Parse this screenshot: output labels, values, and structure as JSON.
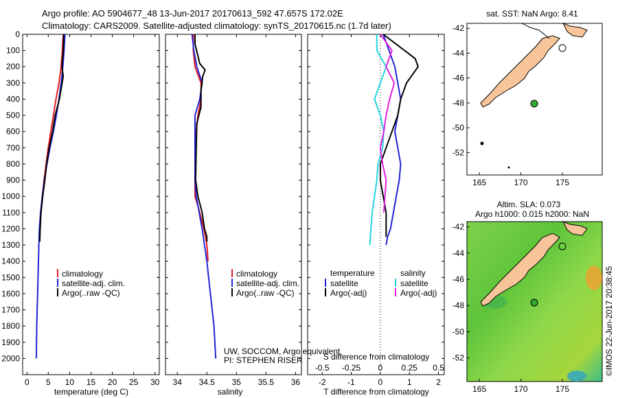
{
  "header": {
    "line1": "Argo profile: AO 5904677_48 13-Jun-2017 20170613_592 47.657S 172.02E",
    "line2": "Climatology: CARS2009. Satellite-adjusted climatology: synTS_20170615.nc (1.7d later)"
  },
  "credit": {
    "line1": "UW, SOCCOM, Argo equivalent",
    "line2": "PI: STEPHEN RISER"
  },
  "vertical_stamp": "©IMOS 22-Jun-2017 20:38:45",
  "colors": {
    "climatology": "#e41a1c",
    "satellite": "#1f22d6",
    "argo": "#000000",
    "satellite_salinity": "#22d3e0",
    "argo_salinity": "#e020e0",
    "land": "#f8c59a",
    "sla_green": "#66cc33",
    "argo_marker": "#33aa33"
  },
  "chart_data": [
    {
      "type": "line",
      "id": "temperature-panel",
      "xlabel": "temperature (deg C)",
      "ylabel": "",
      "xlim": [
        -1,
        31
      ],
      "ylim": [
        2100,
        0
      ],
      "xticks": [
        "0",
        "5",
        "10",
        "15",
        "20",
        "25",
        "30"
      ],
      "yticks": [
        "0",
        "100",
        "200",
        "300",
        "400",
        "500",
        "600",
        "700",
        "800",
        "900",
        "1000",
        "1100",
        "1200",
        "1300",
        "1400",
        "1500",
        "1600",
        "1700",
        "1800",
        "1900",
        "2000"
      ],
      "legend": [
        "climatology",
        "satellite-adj. clim.",
        "Argo(..raw -QC)"
      ],
      "series": [
        {
          "name": "climatology",
          "x": [
            8.5,
            8.3,
            8.0,
            7.5,
            6.8,
            6.2,
            5.6,
            5.0,
            4.5,
            4.0,
            3.6,
            3.2,
            3.0
          ],
          "y": [
            0,
            100,
            200,
            300,
            400,
            500,
            600,
            700,
            800,
            900,
            1000,
            1100,
            1200
          ]
        },
        {
          "name": "satellite-adj. clim.",
          "x": [
            8.9,
            8.7,
            8.4,
            8.0,
            7.5,
            6.9,
            6.2,
            5.4,
            4.7,
            4.1,
            3.6,
            3.2,
            2.9,
            2.8,
            2.7,
            2.6,
            2.5,
            2.4,
            2.3,
            2.25,
            2.2
          ],
          "y": [
            0,
            100,
            200,
            300,
            400,
            500,
            600,
            700,
            800,
            900,
            1000,
            1100,
            1200,
            1300,
            1400,
            1500,
            1600,
            1700,
            1800,
            1900,
            2000
          ]
        },
        {
          "name": "Argo(..raw -QC)",
          "x": [
            8.6,
            8.5,
            8.2,
            8.5,
            7.6,
            6.6,
            6.0,
            5.2,
            4.6,
            4.2,
            3.7,
            3.3,
            3.1,
            3.0
          ],
          "y": [
            0,
            100,
            200,
            260,
            400,
            500,
            600,
            700,
            800,
            900,
            1000,
            1100,
            1200,
            1280
          ]
        }
      ]
    },
    {
      "type": "line",
      "id": "salinity-panel",
      "xlabel": "salinity",
      "xlim": [
        33.8,
        36.1
      ],
      "ylim": [
        2100,
        0
      ],
      "xticks": [
        "34",
        "34.5",
        "35",
        "35.5",
        "36"
      ],
      "legend": [
        "climatology",
        "satellite-adj. clim.",
        "Argo(..raw -QC)"
      ],
      "series": [
        {
          "name": "climatology",
          "x": [
            34.27,
            34.27,
            34.3,
            34.4,
            34.4,
            34.35,
            34.32,
            34.3,
            34.3,
            34.3,
            34.38,
            34.45,
            34.5,
            34.52
          ],
          "y": [
            0,
            100,
            200,
            300,
            400,
            500,
            600,
            800,
            900,
            1000,
            1100,
            1200,
            1300,
            1400
          ]
        },
        {
          "name": "satellite-adj. clim.",
          "x": [
            34.25,
            34.28,
            34.33,
            34.42,
            34.38,
            34.3,
            34.3,
            34.3,
            34.3,
            34.32,
            34.37,
            34.42,
            34.46,
            34.5,
            34.53,
            34.56,
            34.59,
            34.62,
            34.65
          ],
          "y": [
            0,
            100,
            200,
            300,
            400,
            500,
            600,
            800,
            900,
            1000,
            1100,
            1200,
            1300,
            1400,
            1500,
            1600,
            1700,
            1800,
            2000
          ]
        },
        {
          "name": "Argo(..raw -QC)",
          "x": [
            34.3,
            34.3,
            34.38,
            34.47,
            34.43,
            34.4,
            34.4,
            34.33,
            34.32,
            34.31,
            34.35,
            34.42,
            34.46,
            34.5,
            34.5
          ],
          "y": [
            0,
            60,
            180,
            220,
            260,
            350,
            450,
            550,
            700,
            900,
            1000,
            1100,
            1200,
            1250,
            1280
          ]
        }
      ]
    },
    {
      "type": "line",
      "id": "difference-panel",
      "xlabel": "T difference from climatology",
      "xlabel_top": "S difference from climatology",
      "xlim": [
        -2.5,
        2.2
      ],
      "ylim": [
        2100,
        0
      ],
      "xticks": [
        "-2",
        "-1",
        "0",
        "1",
        "2"
      ],
      "xticks_top": [
        "-0.5",
        "-0.25",
        "0",
        "0.25",
        "0.5"
      ],
      "legend": [
        "temperature",
        "satellite",
        "Argo(-adj)",
        "salinity",
        "satellite",
        "Argo(-adj)"
      ],
      "series": [
        {
          "name": "temperature satellite",
          "x": [
            0.1,
            0.3,
            0.5,
            0.6,
            0.7,
            0.6,
            0.5,
            0.6,
            0.7,
            0.65,
            0.55,
            0.45,
            0.35,
            0.25,
            0.2
          ],
          "y": [
            0,
            100,
            200,
            300,
            400,
            500,
            600,
            700,
            800,
            900,
            1000,
            1100,
            1200,
            1250,
            1300
          ]
        },
        {
          "name": "temperature Argo(-adj)",
          "x": [
            0.1,
            1.2,
            1.3,
            0.9,
            0.7,
            0.6,
            0.4,
            0.2,
            0.0,
            0.0,
            0.1,
            0.2,
            0.2
          ],
          "y": [
            0,
            150,
            200,
            300,
            400,
            500,
            600,
            700,
            800,
            900,
            1000,
            1100,
            1250
          ]
        },
        {
          "name": "salinity satellite",
          "x": [
            -0.03,
            -0.03,
            0.05,
            0.0,
            -0.05,
            0.0,
            0.03,
            0.02,
            -0.02,
            -0.03,
            -0.05,
            -0.07,
            -0.09
          ],
          "y": [
            0,
            100,
            200,
            300,
            400,
            500,
            600,
            700,
            800,
            900,
            1000,
            1100,
            1300
          ]
        },
        {
          "name": "salinity Argo(-adj)",
          "x": [
            0.0,
            0.1,
            0.05,
            0.12,
            0.08,
            0.05,
            0.03,
            0.0,
            0.02,
            0.05,
            0.04,
            0.03
          ],
          "y": [
            0,
            100,
            200,
            300,
            400,
            500,
            600,
            700,
            800,
            900,
            1000,
            1100
          ]
        }
      ]
    },
    {
      "type": "map",
      "id": "sst-map",
      "title": "sat. SST: NaN Argo: 8.41",
      "xticks": [
        "165",
        "170",
        "175"
      ],
      "yticks": [
        "-42",
        "-44",
        "-46",
        "-48",
        "-50",
        "-52"
      ],
      "marker": {
        "lon": 172.02,
        "lat": -47.657
      }
    },
    {
      "type": "map",
      "id": "sla-map",
      "title_line1": "Altim. SLA: 0.073",
      "title_line2": "Argo h1000: 0.015 h2000: NaN",
      "xticks": [
        "165",
        "170",
        "175"
      ],
      "yticks": [
        "-42",
        "-44",
        "-46",
        "-48",
        "-50",
        "-52"
      ],
      "marker": {
        "lon": 172.02,
        "lat": -47.657
      }
    }
  ]
}
